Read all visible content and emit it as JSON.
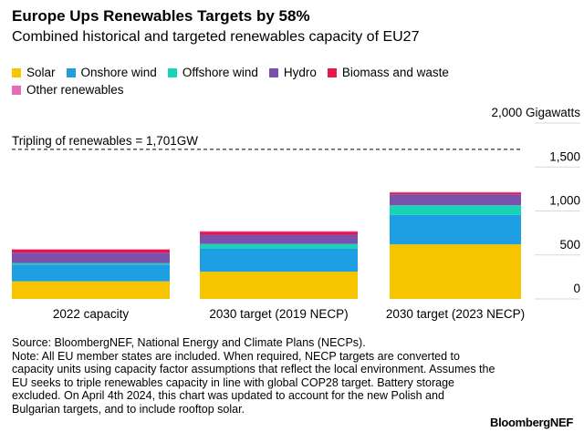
{
  "chart_data": {
    "type": "stacked_bar",
    "title": "Europe Ups Renewables Targets by 58%",
    "subtitle": "Combined historical and targeted renewables capacity of EU27",
    "categories": [
      "2022 capacity",
      "2030 target (2019 NECP)",
      "2030 target (2023 NECP)"
    ],
    "series": [
      {
        "name": "Solar",
        "color": "#f6c500",
        "values": [
          200,
          310,
          620
        ]
      },
      {
        "name": "Onshore wind",
        "color": "#1e9fe3",
        "values": [
          190,
          260,
          335
        ]
      },
      {
        "name": "Offshore wind",
        "color": "#19d3b7",
        "values": [
          16,
          55,
          110
        ]
      },
      {
        "name": "Hydro",
        "color": "#7b52ab",
        "values": [
          120,
          105,
          125
        ]
      },
      {
        "name": "Biomass and waste",
        "color": "#e8174a",
        "values": [
          35,
          35,
          20
        ]
      },
      {
        "name": "Other renewables",
        "color": "#e86bb8",
        "values": [
          5,
          5,
          5
        ]
      }
    ],
    "ylim": [
      0,
      2000
    ],
    "yticks": [
      0,
      500,
      {
        "value": 1000,
        "label": "1,000"
      },
      {
        "value": 1500,
        "label": "1,500"
      },
      {
        "value": 2000,
        "label": "2,000 Gigawatts"
      }
    ],
    "annotation": {
      "label": "Tripling of renewables = 1,701GW",
      "value": 1701
    },
    "source": "Source: BloombergNEF, National Energy and Climate Plans (NECPs).",
    "note": "Note: All EU member states are included. When required, NECP targets are converted to capacity units using capacity factor assumptions that reflect the local environment. Assumes the EU seeks to triple renewables capacity in line with global COP28 target. Battery storage excluded. On April 4th 2024, this chart was updated to account for the new Polish and Bulgarian targets, and to include rooftop solar.",
    "brand": "BloombergNEF"
  }
}
